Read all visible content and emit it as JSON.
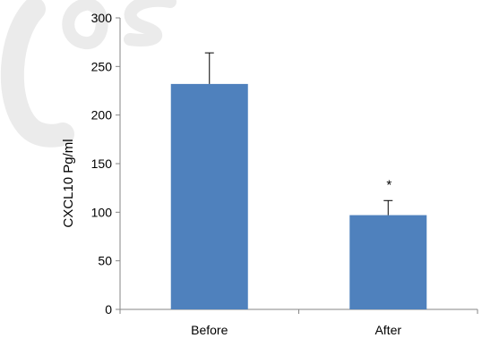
{
  "chart_data": {
    "type": "bar",
    "title": "",
    "xlabel": "",
    "ylabel": "CXCL10 Pg/ml",
    "categories": [
      "Before",
      "After"
    ],
    "values": [
      232,
      97
    ],
    "error_upper": [
      264,
      112
    ],
    "annotations": [
      "",
      "*"
    ],
    "ylim": [
      0,
      300
    ],
    "yticks": [
      0,
      50,
      100,
      150,
      200,
      250,
      300
    ],
    "grid": false,
    "legend": "none",
    "bar_color": "#4F81BD",
    "watermark": "cos"
  }
}
